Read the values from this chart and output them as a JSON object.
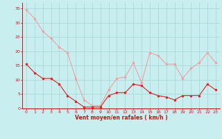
{
  "x": [
    0,
    1,
    2,
    3,
    4,
    5,
    6,
    7,
    8,
    9,
    10,
    11,
    12,
    13,
    14,
    15,
    16,
    17,
    18,
    19,
    20,
    21,
    22,
    23
  ],
  "wind_avg": [
    15.5,
    12.5,
    10.5,
    10.5,
    8.5,
    4.5,
    2.5,
    0.5,
    0.5,
    0.5,
    4.5,
    5.5,
    5.5,
    8.5,
    8.0,
    5.5,
    4.5,
    4.0,
    3.0,
    4.5,
    4.5,
    4.5,
    8.5,
    6.5
  ],
  "wind_gust": [
    34.5,
    31.5,
    27.0,
    24.5,
    21.5,
    19.5,
    10.5,
    3.0,
    1.0,
    1.0,
    6.5,
    10.5,
    11.0,
    16.0,
    9.0,
    19.5,
    18.5,
    15.5,
    15.5,
    10.5,
    14.0,
    16.0,
    19.5,
    16.0
  ],
  "xlabel": "Vent moyen/en rafales ( km/h )",
  "ylim": [
    0,
    37
  ],
  "xlim": [
    -0.5,
    23.5
  ],
  "yticks": [
    0,
    5,
    10,
    15,
    20,
    25,
    30,
    35
  ],
  "xticks": [
    0,
    1,
    2,
    3,
    4,
    5,
    6,
    7,
    8,
    9,
    10,
    11,
    12,
    13,
    14,
    15,
    16,
    17,
    18,
    19,
    20,
    21,
    22,
    23
  ],
  "bg_color": "#c8eef0",
  "line_avg_color": "#dd2222",
  "line_gust_color": "#f0a0a0",
  "grid_color": "#aad8d8",
  "tick_label_color": "#cc1111",
  "xlabel_color": "#cc1111",
  "marker_size": 2.5,
  "line_width": 0.8
}
